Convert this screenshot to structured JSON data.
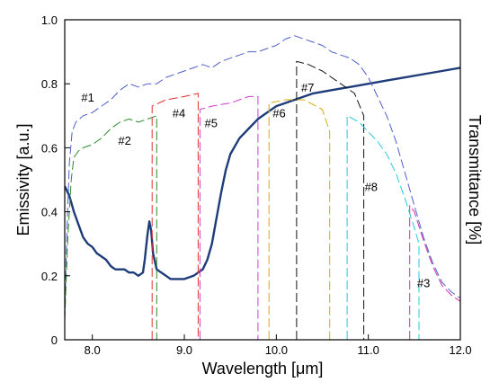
{
  "chart_data": {
    "type": "line",
    "xlabel": "Wavelength  [μm]",
    "ylabel": "Emissivity [a.u.]",
    "y2label": "Transmittance [%]",
    "xlim": [
      7.7,
      12.0
    ],
    "ylim": [
      0,
      1.0
    ],
    "x_ticks": [
      {
        "value": 8.0,
        "label": "8.0"
      },
      {
        "value": 9.0,
        "label": "9.0"
      },
      {
        "value": 10.0,
        "label": "10.0"
      },
      {
        "value": 11.0,
        "label": "11.0"
      },
      {
        "value": 12.0,
        "label": "12.0"
      }
    ],
    "y_ticks": [
      {
        "value": 0,
        "label": "0"
      },
      {
        "value": 0.2,
        "label": "0.2"
      },
      {
        "value": 0.4,
        "label": "0.4"
      },
      {
        "value": 0.6,
        "label": "0.6"
      },
      {
        "value": 0.8,
        "label": "0.8"
      },
      {
        "value": 1.0,
        "label": "1.0"
      }
    ],
    "grid": false,
    "series": [
      {
        "color": "#1f3c7a",
        "dash": "solid",
        "width": 2.4,
        "points": [
          [
            7.7,
            0.48
          ],
          [
            7.75,
            0.45
          ],
          [
            7.8,
            0.4
          ],
          [
            7.85,
            0.36
          ],
          [
            7.9,
            0.32
          ],
          [
            7.95,
            0.3
          ],
          [
            8.0,
            0.29
          ],
          [
            8.05,
            0.27
          ],
          [
            8.1,
            0.26
          ],
          [
            8.15,
            0.25
          ],
          [
            8.2,
            0.23
          ],
          [
            8.25,
            0.22
          ],
          [
            8.3,
            0.22
          ],
          [
            8.35,
            0.22
          ],
          [
            8.4,
            0.21
          ],
          [
            8.45,
            0.21
          ],
          [
            8.5,
            0.2
          ],
          [
            8.55,
            0.21
          ],
          [
            8.57,
            0.25
          ],
          [
            8.6,
            0.33
          ],
          [
            8.62,
            0.37
          ],
          [
            8.64,
            0.34
          ],
          [
            8.66,
            0.27
          ],
          [
            8.7,
            0.22
          ],
          [
            8.75,
            0.21
          ],
          [
            8.8,
            0.2
          ],
          [
            8.85,
            0.19
          ],
          [
            8.9,
            0.19
          ],
          [
            8.95,
            0.19
          ],
          [
            9.0,
            0.19
          ],
          [
            9.1,
            0.2
          ],
          [
            9.2,
            0.22
          ],
          [
            9.25,
            0.25
          ],
          [
            9.3,
            0.3
          ],
          [
            9.35,
            0.38
          ],
          [
            9.4,
            0.46
          ],
          [
            9.45,
            0.53
          ],
          [
            9.5,
            0.58
          ],
          [
            9.6,
            0.63
          ],
          [
            9.7,
            0.66
          ],
          [
            9.8,
            0.69
          ],
          [
            9.9,
            0.71
          ],
          [
            10.0,
            0.73
          ],
          [
            10.2,
            0.75
          ],
          [
            10.4,
            0.77
          ],
          [
            10.6,
            0.78
          ],
          [
            10.8,
            0.79
          ],
          [
            11.0,
            0.8
          ],
          [
            11.2,
            0.81
          ],
          [
            11.4,
            0.82
          ],
          [
            11.6,
            0.83
          ],
          [
            11.8,
            0.84
          ],
          [
            12.0,
            0.85
          ]
        ]
      },
      {
        "name": "#1",
        "color": "#4f5fc8",
        "dash": "10 4",
        "width": 1,
        "points": [
          [
            7.7,
            0.07
          ],
          [
            7.72,
            0.3
          ],
          [
            7.75,
            0.55
          ],
          [
            7.78,
            0.65
          ],
          [
            7.82,
            0.68
          ],
          [
            7.9,
            0.7
          ],
          [
            8.0,
            0.71
          ],
          [
            8.1,
            0.73
          ],
          [
            8.2,
            0.75
          ],
          [
            8.3,
            0.78
          ],
          [
            8.4,
            0.8
          ],
          [
            8.5,
            0.79
          ],
          [
            8.6,
            0.8
          ],
          [
            8.7,
            0.8
          ],
          [
            8.8,
            0.82
          ],
          [
            8.9,
            0.83
          ],
          [
            9.0,
            0.84
          ],
          [
            9.1,
            0.85
          ],
          [
            9.2,
            0.86
          ],
          [
            9.3,
            0.85
          ],
          [
            9.4,
            0.87
          ],
          [
            9.5,
            0.88
          ],
          [
            9.6,
            0.89
          ],
          [
            9.7,
            0.9
          ],
          [
            9.8,
            0.9
          ],
          [
            9.9,
            0.91
          ],
          [
            10.0,
            0.92
          ],
          [
            10.1,
            0.94
          ],
          [
            10.2,
            0.95
          ],
          [
            10.3,
            0.94
          ],
          [
            10.4,
            0.93
          ],
          [
            10.5,
            0.92
          ],
          [
            10.6,
            0.9
          ],
          [
            10.7,
            0.89
          ],
          [
            10.8,
            0.88
          ],
          [
            10.9,
            0.86
          ],
          [
            11.0,
            0.82
          ],
          [
            11.1,
            0.76
          ],
          [
            11.2,
            0.7
          ],
          [
            11.3,
            0.62
          ],
          [
            11.4,
            0.52
          ],
          [
            11.5,
            0.42
          ],
          [
            11.6,
            0.32
          ],
          [
            11.7,
            0.24
          ],
          [
            11.8,
            0.18
          ],
          [
            11.9,
            0.15
          ],
          [
            12.0,
            0.13
          ]
        ]
      },
      {
        "name": "#2",
        "color": "#2e8b2e",
        "dash": "10 4",
        "width": 1,
        "points": [
          [
            7.7,
            0.06
          ],
          [
            7.73,
            0.3
          ],
          [
            7.77,
            0.5
          ],
          [
            7.8,
            0.57
          ],
          [
            7.85,
            0.59
          ],
          [
            7.9,
            0.6
          ],
          [
            8.0,
            0.61
          ],
          [
            8.1,
            0.63
          ],
          [
            8.2,
            0.66
          ],
          [
            8.3,
            0.68
          ],
          [
            8.4,
            0.69
          ],
          [
            8.5,
            0.68
          ],
          [
            8.6,
            0.69
          ],
          [
            8.7,
            0.7
          ],
          [
            8.7,
            0
          ]
        ]
      },
      {
        "name": "#3",
        "color": "#cc2ea8",
        "dash": "10 4",
        "width": 1,
        "points": [
          [
            11.45,
            0
          ],
          [
            11.45,
            0.42
          ],
          [
            11.5,
            0.4
          ],
          [
            11.6,
            0.31
          ],
          [
            11.7,
            0.23
          ],
          [
            11.8,
            0.17
          ],
          [
            11.9,
            0.14
          ],
          [
            12.0,
            0.12
          ]
        ]
      },
      {
        "name": "#4",
        "color": "#e03030",
        "dash": "10 4",
        "width": 1,
        "points": [
          [
            8.65,
            0
          ],
          [
            8.65,
            0.73
          ],
          [
            8.8,
            0.75
          ],
          [
            9.0,
            0.76
          ],
          [
            9.15,
            0.77
          ],
          [
            9.15,
            0
          ]
        ]
      },
      {
        "name": "#5",
        "color": "#cc3ccc",
        "dash": "10 4",
        "width": 1,
        "points": [
          [
            9.17,
            0
          ],
          [
            9.17,
            0.72
          ],
          [
            9.3,
            0.73
          ],
          [
            9.5,
            0.74
          ],
          [
            9.7,
            0.76
          ],
          [
            9.8,
            0.76
          ],
          [
            9.8,
            0
          ]
        ]
      },
      {
        "name": "#6",
        "color": "#d4aa10",
        "dash": "10 4",
        "width": 1,
        "points": [
          [
            9.92,
            0
          ],
          [
            9.92,
            0.74
          ],
          [
            10.1,
            0.75
          ],
          [
            10.3,
            0.75
          ],
          [
            10.5,
            0.72
          ],
          [
            10.58,
            0.65
          ],
          [
            10.58,
            0
          ]
        ]
      },
      {
        "name": "#7",
        "color": "#111111",
        "dash": "10 4",
        "width": 1,
        "points": [
          [
            10.22,
            0
          ],
          [
            10.22,
            0.87
          ],
          [
            10.35,
            0.86
          ],
          [
            10.5,
            0.84
          ],
          [
            10.7,
            0.8
          ],
          [
            10.85,
            0.77
          ],
          [
            10.95,
            0.7
          ],
          [
            10.95,
            0
          ]
        ]
      },
      {
        "name": "#8",
        "color": "#28c8d8",
        "dash": "10 4",
        "width": 1,
        "points": [
          [
            10.77,
            0
          ],
          [
            10.77,
            0.7
          ],
          [
            10.9,
            0.68
          ],
          [
            11.0,
            0.65
          ],
          [
            11.1,
            0.62
          ],
          [
            11.2,
            0.58
          ],
          [
            11.3,
            0.52
          ],
          [
            11.4,
            0.44
          ],
          [
            11.5,
            0.35
          ],
          [
            11.55,
            0.3
          ],
          [
            11.55,
            0
          ]
        ]
      }
    ],
    "annotations": [
      {
        "text": "#1",
        "x": 7.88,
        "y": 0.745
      },
      {
        "text": "#2",
        "x": 8.28,
        "y": 0.61
      },
      {
        "text": "#3",
        "x": 11.53,
        "y": 0.165
      },
      {
        "text": "#4",
        "x": 8.87,
        "y": 0.695
      },
      {
        "text": "#5",
        "x": 9.22,
        "y": 0.665
      },
      {
        "text": "#6",
        "x": 9.96,
        "y": 0.695
      },
      {
        "text": "#7",
        "x": 10.27,
        "y": 0.775
      },
      {
        "text": "#8",
        "x": 10.96,
        "y": 0.465
      }
    ]
  }
}
